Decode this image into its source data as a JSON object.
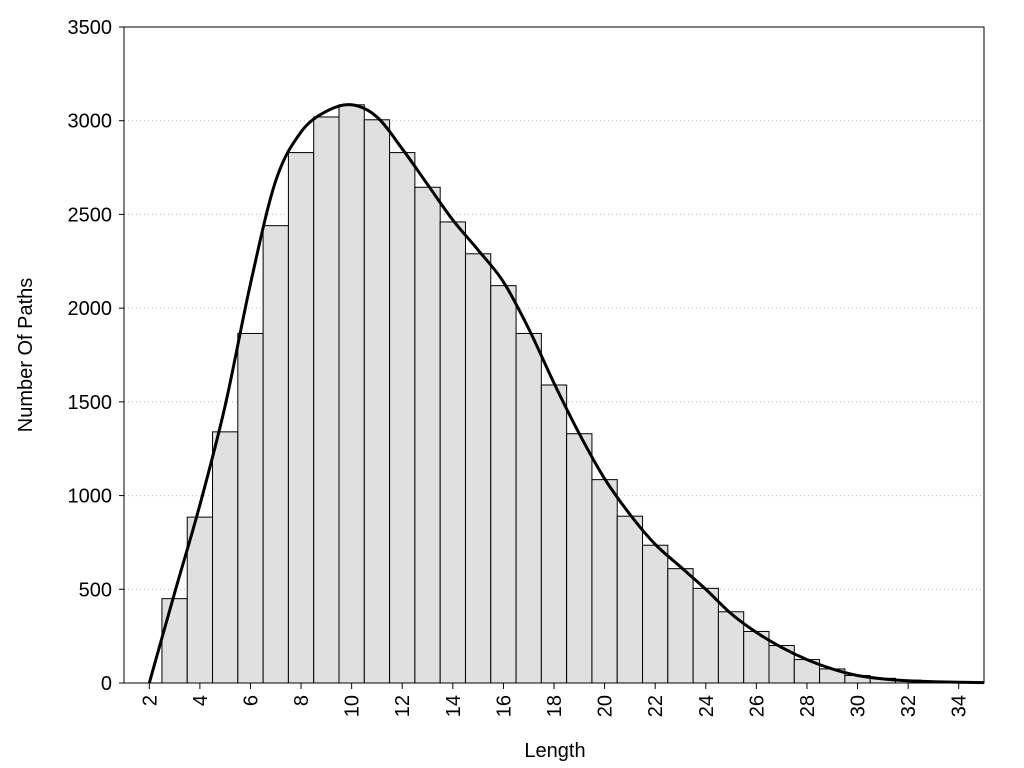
{
  "chart_data": {
    "type": "histogram",
    "x_label": "Length",
    "y_label": "Number Of Paths",
    "bins": [
      2.5,
      3.5,
      4.5,
      5.5,
      6.5,
      7.5,
      8.5,
      9.5,
      10.5,
      11.5,
      12.5,
      13.5,
      14.5,
      15.5,
      16.5,
      17.5,
      18.5,
      19.5,
      20.5,
      21.5,
      22.5,
      23.5,
      24.5,
      25.5,
      26.5,
      27.5,
      28.5,
      29.5,
      30.5,
      31.5,
      32.5,
      33.5,
      34.5
    ],
    "values": [
      450,
      885,
      1340,
      1865,
      2440,
      2830,
      3020,
      3085,
      3005,
      2830,
      2645,
      2460,
      2290,
      2120,
      1865,
      1590,
      1330,
      1085,
      890,
      735,
      610,
      505,
      380,
      275,
      200,
      125,
      75,
      40,
      25,
      15,
      8,
      5
    ],
    "color": "#e0e0e0",
    "curve": {
      "type": "line",
      "color": "#000000",
      "x": [
        2,
        3,
        4,
        5,
        6,
        7,
        8,
        9,
        10,
        11,
        12,
        13,
        14,
        15,
        16,
        17,
        18,
        19,
        20,
        21,
        22,
        23,
        24,
        25,
        26,
        27,
        28,
        29,
        30,
        31,
        32,
        33,
        34,
        35
      ],
      "values": [
        0,
        480,
        950,
        1480,
        2130,
        2680,
        2940,
        3050,
        3085,
        3020,
        2850,
        2660,
        2470,
        2310,
        2140,
        1890,
        1600,
        1330,
        1090,
        900,
        740,
        620,
        500,
        370,
        270,
        190,
        125,
        75,
        40,
        22,
        12,
        7,
        4,
        2
      ]
    },
    "xlim": [
      1,
      35
    ],
    "ylim": [
      0,
      3500
    ],
    "xticks": [
      2,
      4,
      6,
      8,
      10,
      12,
      14,
      16,
      18,
      20,
      22,
      24,
      26,
      28,
      30,
      32,
      34
    ],
    "yticks": [
      0,
      500,
      1000,
      1500,
      2000,
      2500,
      3000,
      3500
    ],
    "grid": true
  }
}
